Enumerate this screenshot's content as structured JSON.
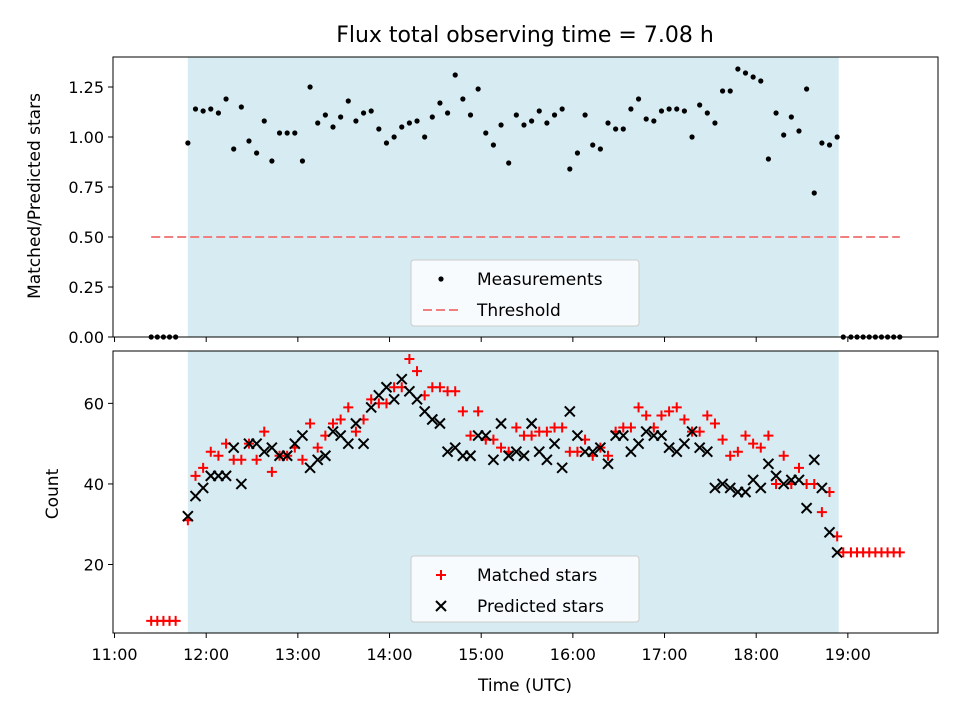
{
  "chart_data": [
    {
      "type": "scatter",
      "title": "Flux total observing time = 7.08 h",
      "ylabel": "Matched/Predicted stars",
      "ylim": [
        0,
        1.4
      ],
      "yticks": [
        "0.00",
        "0.25",
        "0.50",
        "0.75",
        "1.00",
        "1.25"
      ],
      "shaded_interval": [
        "11:48",
        "18:54"
      ],
      "legend": {
        "position": "lower center",
        "entries": [
          "Measurements",
          "Threshold"
        ]
      },
      "series": [
        {
          "name": "Measurements",
          "marker": "dot",
          "color": "#000000",
          "x": [
            "11:24",
            "11:28",
            "11:32",
            "11:36",
            "11:40",
            "11:48",
            "11:53",
            "11:58",
            "12:03",
            "12:08",
            "12:13",
            "12:18",
            "12:23",
            "12:28",
            "12:33",
            "12:38",
            "12:43",
            "12:48",
            "12:53",
            "12:58",
            "13:03",
            "13:08",
            "13:13",
            "13:18",
            "13:23",
            "13:28",
            "13:33",
            "13:38",
            "13:43",
            "13:48",
            "13:53",
            "13:58",
            "14:03",
            "14:08",
            "14:13",
            "14:18",
            "14:23",
            "14:28",
            "14:33",
            "14:38",
            "14:43",
            "14:48",
            "14:53",
            "14:58",
            "15:03",
            "15:08",
            "15:13",
            "15:18",
            "15:23",
            "15:28",
            "15:33",
            "15:38",
            "15:43",
            "15:48",
            "15:53",
            "15:58",
            "16:03",
            "16:08",
            "16:13",
            "16:18",
            "16:23",
            "16:28",
            "16:33",
            "16:38",
            "16:43",
            "16:48",
            "16:53",
            "16:58",
            "17:03",
            "17:08",
            "17:13",
            "17:18",
            "17:23",
            "17:28",
            "17:33",
            "17:38",
            "17:43",
            "17:48",
            "17:53",
            "17:58",
            "18:03",
            "18:08",
            "18:13",
            "18:18",
            "18:23",
            "18:28",
            "18:33",
            "18:38",
            "18:43",
            "18:48",
            "18:53",
            "18:57",
            "19:02",
            "19:06",
            "19:10",
            "19:14",
            "19:18",
            "19:22",
            "19:26",
            "19:30",
            "19:34"
          ],
          "y": [
            0,
            0,
            0,
            0,
            0,
            0.97,
            1.14,
            1.13,
            1.14,
            1.12,
            1.19,
            0.94,
            1.15,
            0.98,
            0.92,
            1.08,
            0.88,
            1.02,
            1.02,
            1.02,
            0.88,
            1.25,
            1.07,
            1.11,
            1.05,
            1.1,
            1.18,
            1.08,
            1.12,
            1.13,
            1.04,
            0.97,
            1.0,
            1.05,
            1.07,
            1.08,
            1.0,
            1.1,
            1.17,
            1.12,
            1.31,
            1.19,
            1.11,
            1.24,
            1.02,
            0.96,
            1.06,
            0.87,
            1.11,
            1.06,
            1.08,
            1.13,
            1.07,
            1.11,
            1.14,
            0.84,
            0.92,
            1.11,
            0.96,
            0.94,
            1.07,
            1.04,
            1.04,
            1.14,
            1.19,
            1.09,
            1.08,
            1.13,
            1.14,
            1.14,
            1.13,
            1.0,
            1.16,
            1.12,
            1.07,
            1.23,
            1.23,
            1.34,
            1.32,
            1.3,
            1.28,
            0.89,
            1.12,
            1.01,
            1.1,
            1.03,
            1.24,
            0.72,
            0.97,
            0.96,
            1.0,
            0,
            0,
            0,
            0,
            0,
            0,
            0,
            0,
            0,
            0
          ]
        },
        {
          "name": "Threshold",
          "type": "line",
          "style": "dashed",
          "color": "#f08080",
          "x": [
            "11:24",
            "19:34"
          ],
          "y": [
            0.5,
            0.5
          ]
        }
      ]
    },
    {
      "type": "scatter",
      "xlabel": "Time (UTC)",
      "ylabel": "Count",
      "xlim": [
        "10:59",
        "19:59"
      ],
      "ylim": [
        3,
        73
      ],
      "xticks": [
        "11:00",
        "12:00",
        "13:00",
        "14:00",
        "15:00",
        "16:00",
        "17:00",
        "18:00",
        "19:00"
      ],
      "yticks": [
        "20",
        "40",
        "60"
      ],
      "shaded_interval": [
        "11:48",
        "18:54"
      ],
      "legend": {
        "position": "lower center",
        "entries": [
          "Matched stars",
          "Predicted stars"
        ]
      },
      "series": [
        {
          "name": "Matched stars",
          "marker": "plus",
          "color": "#ff0000",
          "x": [
            "11:24",
            "11:28",
            "11:32",
            "11:36",
            "11:40",
            "11:48",
            "11:53",
            "11:58",
            "12:03",
            "12:08",
            "12:13",
            "12:18",
            "12:23",
            "12:28",
            "12:33",
            "12:38",
            "12:43",
            "12:48",
            "12:53",
            "12:58",
            "13:03",
            "13:08",
            "13:13",
            "13:18",
            "13:23",
            "13:28",
            "13:33",
            "13:38",
            "13:43",
            "13:48",
            "13:53",
            "13:58",
            "14:03",
            "14:08",
            "14:13",
            "14:18",
            "14:23",
            "14:28",
            "14:33",
            "14:38",
            "14:43",
            "14:48",
            "14:53",
            "14:58",
            "15:03",
            "15:08",
            "15:13",
            "15:18",
            "15:23",
            "15:28",
            "15:33",
            "15:38",
            "15:43",
            "15:48",
            "15:53",
            "15:58",
            "16:03",
            "16:08",
            "16:13",
            "16:18",
            "16:23",
            "16:28",
            "16:33",
            "16:38",
            "16:43",
            "16:48",
            "16:53",
            "16:58",
            "17:03",
            "17:08",
            "17:13",
            "17:18",
            "17:23",
            "17:28",
            "17:33",
            "17:38",
            "17:43",
            "17:48",
            "17:53",
            "17:58",
            "18:03",
            "18:08",
            "18:13",
            "18:18",
            "18:23",
            "18:28",
            "18:33",
            "18:38",
            "18:43",
            "18:48",
            "18:53",
            "18:57",
            "19:02",
            "19:06",
            "19:10",
            "19:14",
            "19:18",
            "19:22",
            "19:26",
            "19:30",
            "19:34"
          ],
          "y": [
            6,
            6,
            6,
            6,
            6,
            31,
            42,
            44,
            48,
            47,
            50,
            46,
            46,
            50,
            46,
            53,
            43,
            47,
            47,
            49,
            46,
            55,
            49,
            52,
            55,
            56,
            59,
            53,
            56,
            61,
            60,
            60,
            64,
            64,
            71,
            68,
            62,
            64,
            64,
            63,
            63,
            58,
            52,
            58,
            51,
            51,
            49,
            48,
            54,
            52,
            52,
            53,
            53,
            54,
            54,
            48,
            48,
            51,
            47,
            49,
            47,
            53,
            54,
            54,
            59,
            57,
            54,
            57,
            58,
            59,
            56,
            53,
            53,
            57,
            55,
            51,
            47,
            48,
            52,
            50,
            49,
            52,
            40,
            47,
            40,
            44,
            40,
            40,
            33,
            38,
            27,
            23,
            23,
            23,
            23,
            23,
            23,
            23,
            23,
            23,
            23
          ]
        },
        {
          "name": "Predicted stars",
          "marker": "x",
          "color": "#000000",
          "x": [
            "11:48",
            "11:53",
            "11:58",
            "12:03",
            "12:08",
            "12:13",
            "12:18",
            "12:23",
            "12:28",
            "12:33",
            "12:38",
            "12:43",
            "12:48",
            "12:53",
            "12:58",
            "13:03",
            "13:08",
            "13:13",
            "13:18",
            "13:23",
            "13:28",
            "13:33",
            "13:38",
            "13:43",
            "13:48",
            "13:53",
            "13:58",
            "14:03",
            "14:08",
            "14:13",
            "14:18",
            "14:23",
            "14:28",
            "14:33",
            "14:38",
            "14:43",
            "14:48",
            "14:53",
            "14:58",
            "15:03",
            "15:08",
            "15:13",
            "15:18",
            "15:23",
            "15:28",
            "15:33",
            "15:38",
            "15:43",
            "15:48",
            "15:53",
            "15:58",
            "16:03",
            "16:08",
            "16:13",
            "16:18",
            "16:23",
            "16:28",
            "16:33",
            "16:38",
            "16:43",
            "16:48",
            "16:53",
            "16:58",
            "17:03",
            "17:08",
            "17:13",
            "17:18",
            "17:23",
            "17:28",
            "17:33",
            "17:38",
            "17:43",
            "17:48",
            "17:53",
            "17:58",
            "18:03",
            "18:08",
            "18:13",
            "18:18",
            "18:23",
            "18:28",
            "18:33",
            "18:38",
            "18:43",
            "18:48",
            "18:53"
          ],
          "y": [
            32,
            37,
            39,
            42,
            42,
            42,
            49,
            40,
            50,
            50,
            48,
            49,
            47,
            47,
            50,
            52,
            44,
            46,
            47,
            53,
            52,
            50,
            55,
            50,
            59,
            62,
            64,
            61,
            66,
            63,
            61,
            58,
            56,
            55,
            48,
            49,
            47,
            47,
            52,
            52,
            46,
            55,
            47,
            48,
            47,
            55,
            48,
            46,
            50,
            44,
            58,
            52,
            48,
            48,
            49,
            45,
            52,
            52,
            48,
            50,
            53,
            52,
            52,
            49,
            48,
            50,
            53,
            49,
            48,
            39,
            40,
            39,
            38,
            38,
            41,
            39,
            45,
            42,
            40,
            41,
            41,
            34,
            46,
            39,
            28,
            23
          ]
        }
      ]
    }
  ]
}
